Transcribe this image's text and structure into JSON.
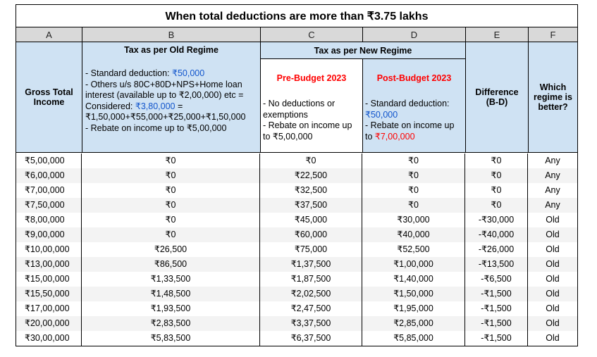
{
  "title": "When total deductions are more than ₹3.75 lakhs",
  "column_letters": [
    "A",
    "B",
    "C",
    "D",
    "E",
    "F"
  ],
  "headers": {
    "gross_income": "Gross Total Income",
    "old_regime": "Tax as per Old Regime",
    "old_regime_notes": {
      "line1_prefix": "- Standard deduction: ",
      "line1_value": "₹50,000",
      "line2": "- Others u/s 80C+80D+NPS+Home loan interest (available up to ₹2,00,000) etc =",
      "line3_prefix": "Considered: ",
      "line3_value": "₹3,80,000",
      "line3_suffix": " =",
      "line4": "₹1,50,000+₹55,000+₹25,000+₹1,50,000",
      "line5": "- Rebate on income up to ₹5,00,000"
    },
    "new_regime": "Tax as per New Regime",
    "pre_budget": "Pre-Budget 2023",
    "pre_budget_notes": {
      "line1": "- No deductions or exemptions",
      "line2": "- Rebate on income up to ₹5,00,000"
    },
    "post_budget": "Post-Budget 2023",
    "post_budget_notes": {
      "line1": "- Standard deduction:",
      "line2_value": "₹50,000",
      "line3": "- Rebate on income up to ",
      "line3_value": "₹7,00,000"
    },
    "difference": "Difference (B-D)",
    "which_regime": "Which regime is better?"
  },
  "rows": [
    [
      "₹5,00,000",
      "₹0",
      "₹0",
      "₹0",
      "₹0",
      "Any"
    ],
    [
      "₹6,00,000",
      "₹0",
      "₹22,500",
      "₹0",
      "₹0",
      "Any"
    ],
    [
      "₹7,00,000",
      "₹0",
      "₹32,500",
      "₹0",
      "₹0",
      "Any"
    ],
    [
      "₹7,50,000",
      "₹0",
      "₹37,500",
      "₹0",
      "₹0",
      "Any"
    ],
    [
      "₹8,00,000",
      "₹0",
      "₹45,000",
      "₹30,000",
      "-₹30,000",
      "Old"
    ],
    [
      "₹9,00,000",
      "₹0",
      "₹60,000",
      "₹40,000",
      "-₹40,000",
      "Old"
    ],
    [
      "₹10,00,000",
      "₹26,500",
      "₹75,000",
      "₹52,500",
      "-₹26,000",
      "Old"
    ],
    [
      "₹13,00,000",
      "₹86,500",
      "₹1,37,500",
      "₹1,00,000",
      "-₹13,500",
      "Old"
    ],
    [
      "₹15,00,000",
      "₹1,33,500",
      "₹1,87,500",
      "₹1,40,000",
      "-₹6,500",
      "Old"
    ],
    [
      "₹15,50,000",
      "₹1,48,500",
      "₹2,02,500",
      "₹1,50,000",
      "-₹1,500",
      "Old"
    ],
    [
      "₹17,00,000",
      "₹1,93,500",
      "₹2,47,500",
      "₹1,95,000",
      "-₹1,500",
      "Old"
    ],
    [
      "₹20,00,000",
      "₹2,83,500",
      "₹3,37,500",
      "₹2,85,000",
      "-₹1,500",
      "Old"
    ],
    [
      "₹30,00,000",
      "₹5,83,500",
      "₹6,37,500",
      "₹5,85,000",
      "-₹1,500",
      "Old"
    ]
  ]
}
